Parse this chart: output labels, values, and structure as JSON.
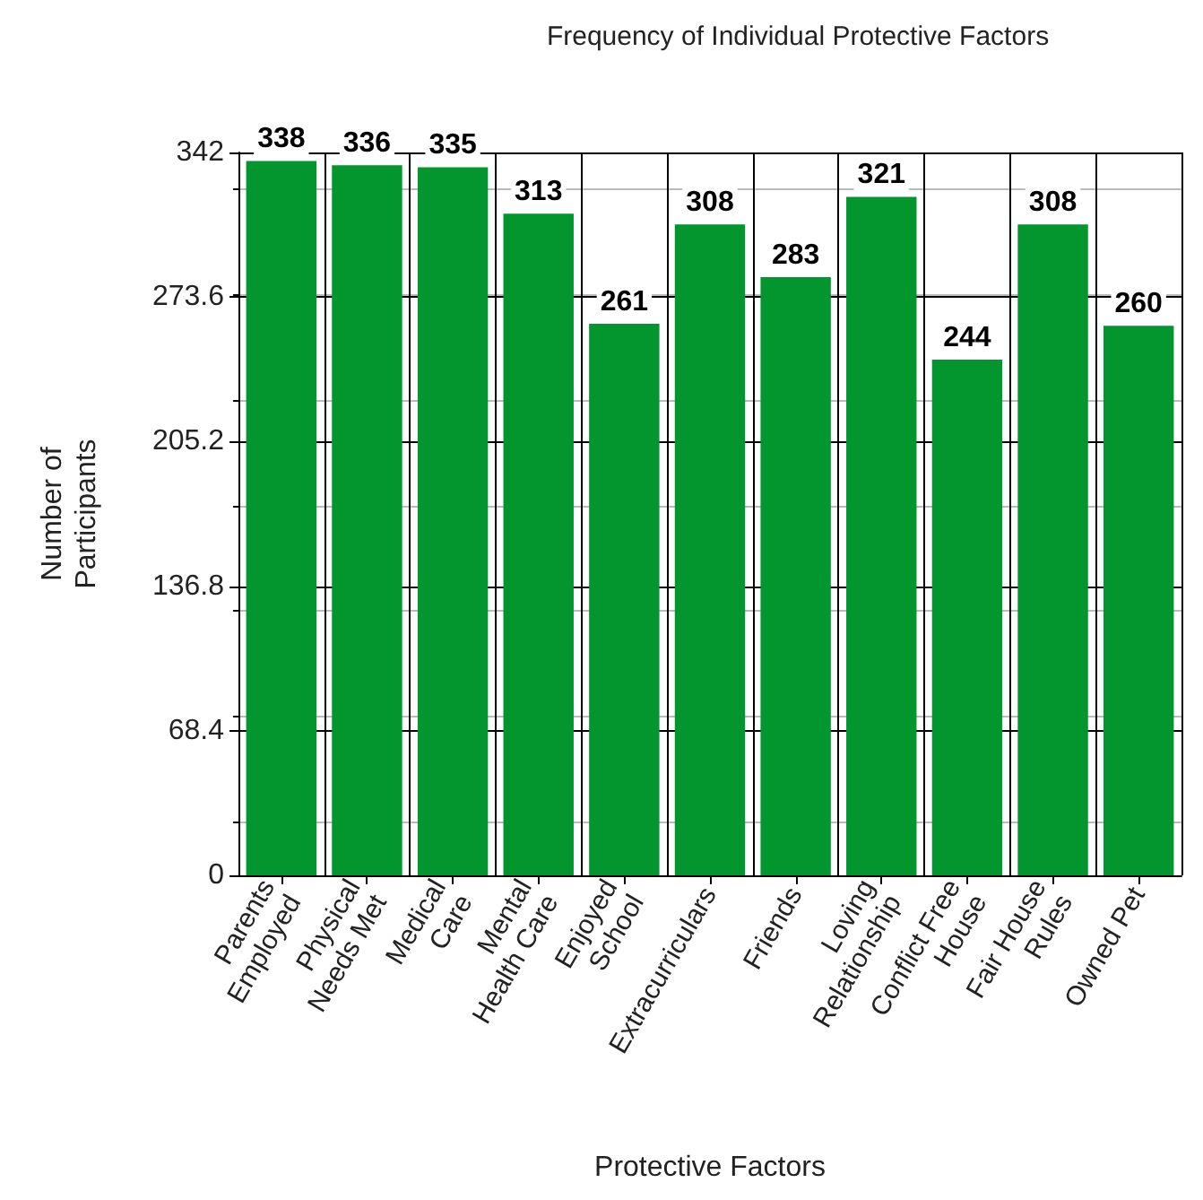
{
  "chart_data": {
    "type": "bar",
    "title": "Frequency of Individual Protective Factors",
    "xlabel": "Protective Factors",
    "ylabel": "Number of\nParticipants",
    "categories": [
      "Parents\nEmployed",
      "Physical\nNeeds Met",
      "Medical\nCare",
      "Mental\nHealth Care",
      "Enjoyed\nSchool",
      "Extracurriculars",
      "Friends",
      "Loving\nRelationship",
      "Conflict Free\nHouse",
      "Fair House\nRules",
      "Owned Pet"
    ],
    "values": [
      338,
      336,
      335,
      313,
      261,
      308,
      283,
      321,
      244,
      308,
      260
    ],
    "color": "#03962f",
    "ylim": [
      0,
      342
    ],
    "yticks": [
      0,
      68.4,
      136.8,
      205.2,
      273.6,
      342
    ],
    "grid": true,
    "data_labels": true
  }
}
